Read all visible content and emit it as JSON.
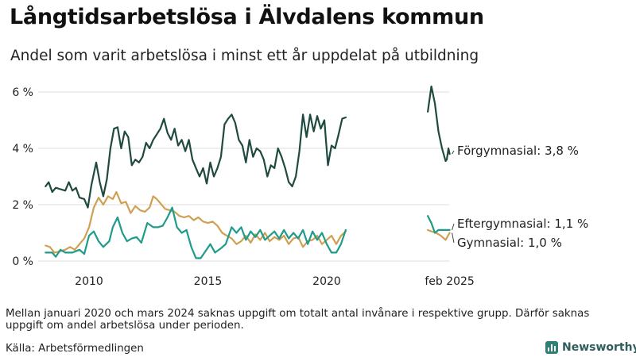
{
  "title": "Långtidsarbetslösa i Älvdalens kommun",
  "subtitle": "Andel som varit arbetslösa i minst ett år uppdelat på utbildning",
  "note": "Mellan januari 2020 och mars 2024 saknas uppgift om totalt antal invånare i respektive grupp. Därför saknas uppgift om andel arbetslösa under perioden.",
  "source": "Källa: Arbetsförmedlingen",
  "brand": "Newsworthy",
  "chart_data": {
    "type": "line",
    "xlabel": "",
    "ylabel": "",
    "x_ticks": [
      "2010",
      "2015",
      "2020",
      "feb 2025"
    ],
    "y_ticks": [
      "0 %",
      "2 %",
      "4 %",
      "6 %"
    ],
    "ylim": [
      0,
      6.3
    ],
    "grid": "horizontal",
    "colors": {
      "forgymnasial": "#1f4a3f",
      "eftergymnasial": "#1f9b8a",
      "gymnasial": "#cfa053"
    },
    "series": [
      {
        "name": "Förgymnasial",
        "label": "Förgymnasial: 3,8 %",
        "color": "#1f4a3f",
        "segments": [
          [
            [
              2008.17,
              2.65
            ],
            [
              2008.3,
              2.8
            ],
            [
              2008.45,
              2.45
            ],
            [
              2008.6,
              2.6
            ],
            [
              2008.8,
              2.55
            ],
            [
              2009.0,
              2.5
            ],
            [
              2009.15,
              2.8
            ],
            [
              2009.3,
              2.5
            ],
            [
              2009.45,
              2.6
            ],
            [
              2009.6,
              2.25
            ],
            [
              2009.8,
              2.2
            ],
            [
              2009.95,
              1.9
            ],
            [
              2010.1,
              2.7
            ],
            [
              2010.3,
              3.5
            ],
            [
              2010.45,
              2.8
            ],
            [
              2010.6,
              2.3
            ],
            [
              2010.75,
              2.9
            ],
            [
              2010.9,
              4.0
            ],
            [
              2011.05,
              4.7
            ],
            [
              2011.2,
              4.75
            ],
            [
              2011.35,
              4.0
            ],
            [
              2011.5,
              4.6
            ],
            [
              2011.65,
              4.4
            ],
            [
              2011.8,
              3.4
            ],
            [
              2011.95,
              3.6
            ],
            [
              2012.1,
              3.5
            ],
            [
              2012.25,
              3.7
            ],
            [
              2012.4,
              4.2
            ],
            [
              2012.55,
              4.0
            ],
            [
              2012.7,
              4.3
            ],
            [
              2012.85,
              4.5
            ],
            [
              2013.0,
              4.7
            ],
            [
              2013.15,
              5.05
            ],
            [
              2013.3,
              4.55
            ],
            [
              2013.45,
              4.3
            ],
            [
              2013.6,
              4.7
            ],
            [
              2013.75,
              4.1
            ],
            [
              2013.9,
              4.3
            ],
            [
              2014.05,
              3.9
            ],
            [
              2014.2,
              4.3
            ],
            [
              2014.35,
              3.6
            ],
            [
              2014.5,
              3.3
            ],
            [
              2014.65,
              3.0
            ],
            [
              2014.8,
              3.3
            ],
            [
              2014.95,
              2.75
            ],
            [
              2015.1,
              3.5
            ],
            [
              2015.25,
              3.0
            ],
            [
              2015.4,
              3.3
            ],
            [
              2015.55,
              3.7
            ],
            [
              2015.7,
              4.85
            ],
            [
              2015.85,
              5.05
            ],
            [
              2016.0,
              5.2
            ],
            [
              2016.15,
              4.9
            ],
            [
              2016.3,
              4.3
            ],
            [
              2016.45,
              4.1
            ],
            [
              2016.6,
              3.5
            ],
            [
              2016.75,
              4.3
            ],
            [
              2016.9,
              3.7
            ],
            [
              2017.05,
              4.0
            ],
            [
              2017.2,
              3.9
            ],
            [
              2017.35,
              3.6
            ],
            [
              2017.5,
              3.0
            ],
            [
              2017.65,
              3.4
            ],
            [
              2017.8,
              3.3
            ],
            [
              2017.95,
              4.0
            ],
            [
              2018.1,
              3.7
            ],
            [
              2018.25,
              3.3
            ],
            [
              2018.4,
              2.8
            ],
            [
              2018.55,
              2.65
            ],
            [
              2018.7,
              3.0
            ],
            [
              2018.85,
              3.9
            ],
            [
              2019.0,
              5.2
            ],
            [
              2019.15,
              4.4
            ],
            [
              2019.3,
              5.2
            ],
            [
              2019.45,
              4.6
            ],
            [
              2019.6,
              5.15
            ],
            [
              2019.75,
              4.7
            ],
            [
              2019.9,
              5.0
            ],
            [
              2020.05,
              3.4
            ],
            [
              2020.2,
              4.1
            ],
            [
              2020.35,
              4.0
            ],
            [
              2020.5,
              4.5
            ],
            [
              2020.65,
              5.05
            ],
            [
              2020.8,
              5.1
            ]
          ],
          [
            [
              2024.25,
              5.3
            ],
            [
              2024.4,
              6.2
            ],
            [
              2024.55,
              5.6
            ],
            [
              2024.7,
              4.6
            ],
            [
              2024.85,
              4.0
            ],
            [
              2025.0,
              3.55
            ],
            [
              2025.05,
              3.6
            ],
            [
              2025.12,
              4.0
            ],
            [
              2025.17,
              3.8
            ]
          ]
        ]
      },
      {
        "name": "Eftergymnasial",
        "label": "Eftergymnasial: 1,1 %",
        "color": "#1f9b8a",
        "segments": [
          [
            [
              2008.17,
              0.3
            ],
            [
              2008.45,
              0.3
            ],
            [
              2008.6,
              0.15
            ],
            [
              2008.8,
              0.4
            ],
            [
              2009.0,
              0.3
            ],
            [
              2009.3,
              0.3
            ],
            [
              2009.6,
              0.4
            ],
            [
              2009.8,
              0.25
            ],
            [
              2010.0,
              0.9
            ],
            [
              2010.2,
              1.05
            ],
            [
              2010.4,
              0.7
            ],
            [
              2010.6,
              0.5
            ],
            [
              2010.85,
              0.7
            ],
            [
              2011.0,
              1.2
            ],
            [
              2011.2,
              1.55
            ],
            [
              2011.4,
              1.0
            ],
            [
              2011.6,
              0.7
            ],
            [
              2011.8,
              0.8
            ],
            [
              2012.0,
              0.85
            ],
            [
              2012.2,
              0.65
            ],
            [
              2012.45,
              1.35
            ],
            [
              2012.7,
              1.2
            ],
            [
              2012.9,
              1.2
            ],
            [
              2013.1,
              1.25
            ],
            [
              2013.3,
              1.55
            ],
            [
              2013.5,
              1.9
            ],
            [
              2013.7,
              1.2
            ],
            [
              2013.9,
              1.0
            ],
            [
              2014.1,
              1.1
            ],
            [
              2014.3,
              0.5
            ],
            [
              2014.5,
              0.1
            ],
            [
              2014.7,
              0.1
            ],
            [
              2014.9,
              0.35
            ],
            [
              2015.1,
              0.6
            ],
            [
              2015.3,
              0.3
            ],
            [
              2015.55,
              0.45
            ],
            [
              2015.75,
              0.6
            ],
            [
              2016.0,
              1.2
            ],
            [
              2016.2,
              1.0
            ],
            [
              2016.4,
              1.2
            ],
            [
              2016.6,
              0.75
            ],
            [
              2016.8,
              1.05
            ],
            [
              2017.0,
              0.85
            ],
            [
              2017.2,
              1.1
            ],
            [
              2017.4,
              0.75
            ],
            [
              2017.6,
              0.9
            ],
            [
              2017.8,
              1.05
            ],
            [
              2018.0,
              0.8
            ],
            [
              2018.2,
              1.1
            ],
            [
              2018.4,
              0.8
            ],
            [
              2018.6,
              1.0
            ],
            [
              2018.8,
              0.8
            ],
            [
              2019.0,
              1.1
            ],
            [
              2019.2,
              0.6
            ],
            [
              2019.4,
              1.05
            ],
            [
              2019.6,
              0.75
            ],
            [
              2019.8,
              1.0
            ],
            [
              2020.0,
              0.6
            ],
            [
              2020.2,
              0.3
            ],
            [
              2020.4,
              0.3
            ],
            [
              2020.6,
              0.6
            ],
            [
              2020.8,
              1.1
            ]
          ],
          [
            [
              2024.25,
              1.6
            ],
            [
              2024.4,
              1.35
            ],
            [
              2024.55,
              1.0
            ],
            [
              2024.7,
              1.1
            ],
            [
              2024.9,
              1.1
            ],
            [
              2025.17,
              1.1
            ]
          ]
        ]
      },
      {
        "name": "Gymnasial",
        "label": "Gymnasial: 1,0 %",
        "color": "#cfa053",
        "segments": [
          [
            [
              2008.17,
              0.55
            ],
            [
              2008.35,
              0.5
            ],
            [
              2008.55,
              0.3
            ],
            [
              2008.8,
              0.35
            ],
            [
              2009.0,
              0.4
            ],
            [
              2009.2,
              0.5
            ],
            [
              2009.4,
              0.4
            ],
            [
              2009.6,
              0.6
            ],
            [
              2009.8,
              0.8
            ],
            [
              2010.0,
              1.2
            ],
            [
              2010.2,
              1.9
            ],
            [
              2010.4,
              2.25
            ],
            [
              2010.6,
              2.0
            ],
            [
              2010.8,
              2.3
            ],
            [
              2011.0,
              2.2
            ],
            [
              2011.15,
              2.45
            ],
            [
              2011.35,
              2.05
            ],
            [
              2011.55,
              2.1
            ],
            [
              2011.75,
              1.7
            ],
            [
              2011.95,
              1.95
            ],
            [
              2012.15,
              1.8
            ],
            [
              2012.35,
              1.75
            ],
            [
              2012.55,
              1.9
            ],
            [
              2012.7,
              2.3
            ],
            [
              2012.85,
              2.2
            ],
            [
              2013.0,
              2.05
            ],
            [
              2013.2,
              1.85
            ],
            [
              2013.4,
              1.8
            ],
            [
              2013.6,
              1.75
            ],
            [
              2013.8,
              1.6
            ],
            [
              2014.0,
              1.55
            ],
            [
              2014.2,
              1.6
            ],
            [
              2014.4,
              1.45
            ],
            [
              2014.6,
              1.55
            ],
            [
              2014.8,
              1.4
            ],
            [
              2015.0,
              1.35
            ],
            [
              2015.2,
              1.4
            ],
            [
              2015.4,
              1.25
            ],
            [
              2015.6,
              1.0
            ],
            [
              2015.8,
              0.9
            ],
            [
              2016.0,
              0.8
            ],
            [
              2016.2,
              0.6
            ],
            [
              2016.4,
              0.7
            ],
            [
              2016.6,
              0.9
            ],
            [
              2016.8,
              0.65
            ],
            [
              2017.0,
              0.95
            ],
            [
              2017.2,
              0.75
            ],
            [
              2017.4,
              1.0
            ],
            [
              2017.6,
              0.7
            ],
            [
              2017.8,
              0.85
            ],
            [
              2018.0,
              0.75
            ],
            [
              2018.2,
              0.9
            ],
            [
              2018.4,
              0.6
            ],
            [
              2018.6,
              0.8
            ],
            [
              2018.8,
              0.85
            ],
            [
              2019.0,
              0.5
            ],
            [
              2019.2,
              0.7
            ],
            [
              2019.4,
              0.75
            ],
            [
              2019.6,
              0.9
            ],
            [
              2019.8,
              0.6
            ],
            [
              2020.0,
              0.75
            ],
            [
              2020.2,
              0.9
            ],
            [
              2020.4,
              0.6
            ],
            [
              2020.6,
              0.9
            ],
            [
              2020.8,
              1.05
            ]
          ],
          [
            [
              2024.25,
              1.1
            ],
            [
              2024.4,
              1.05
            ],
            [
              2024.6,
              1.0
            ],
            [
              2024.8,
              0.9
            ],
            [
              2025.0,
              0.75
            ],
            [
              2025.17,
              1.0
            ]
          ]
        ]
      }
    ]
  }
}
